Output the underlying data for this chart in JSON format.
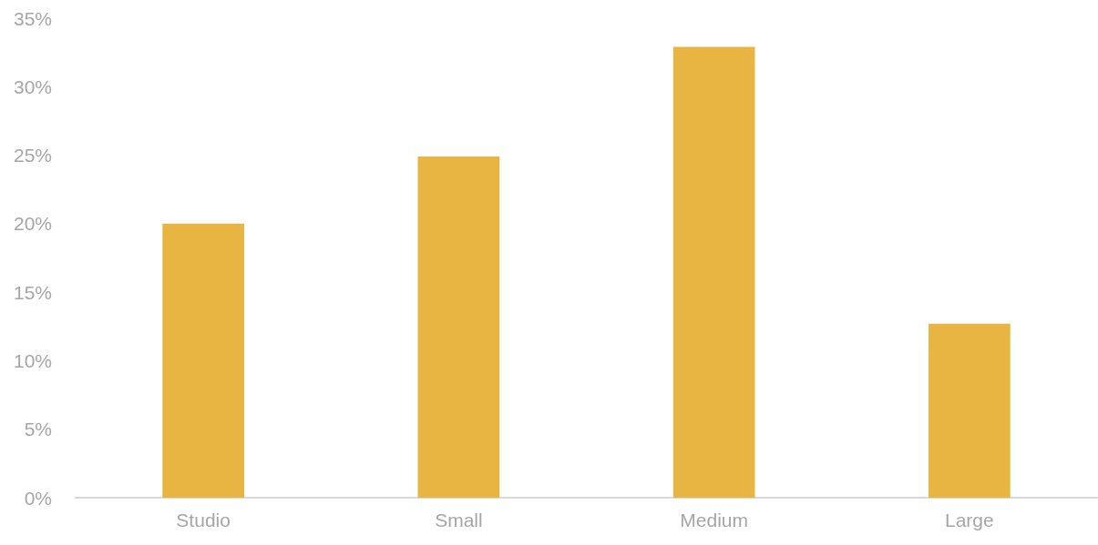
{
  "chart_data": {
    "type": "bar",
    "categories": [
      "Studio",
      "Small",
      "Medium",
      "Large"
    ],
    "values": [
      20,
      24.9,
      32.9,
      12.7
    ],
    "color": "#e8b542",
    "ylim": [
      0,
      35
    ],
    "yticks": [
      {
        "value": 0,
        "label": "0%"
      },
      {
        "value": 5,
        "label": "5%"
      },
      {
        "value": 10,
        "label": "10%"
      },
      {
        "value": 15,
        "label": "15%"
      },
      {
        "value": 20,
        "label": "20%"
      },
      {
        "value": 25,
        "label": "25%"
      },
      {
        "value": 30,
        "label": "30%"
      },
      {
        "value": 35,
        "label": "35%"
      }
    ]
  }
}
